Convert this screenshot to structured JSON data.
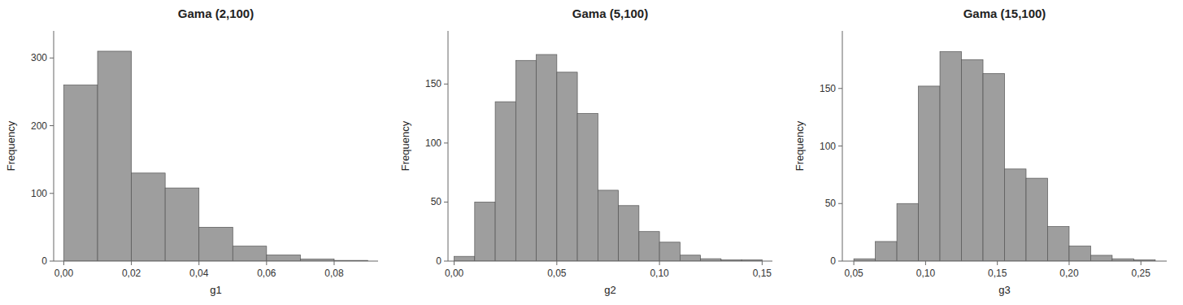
{
  "chart_data": [
    {
      "type": "histogram",
      "title": "Gama (2,100)",
      "xlabel": "g1",
      "ylabel": "Frequency",
      "bins": [
        0.0,
        0.01,
        0.02,
        0.03,
        0.04,
        0.05,
        0.06,
        0.07,
        0.08,
        0.09
      ],
      "values": [
        260,
        310,
        130,
        108,
        50,
        22,
        9,
        3,
        1
      ],
      "color": "#9e9e9e",
      "xlim": [
        -0.003,
        0.093
      ],
      "ylim": [
        0,
        340
      ],
      "xticks": [
        {
          "value": 0.0,
          "label": "0,00"
        },
        {
          "value": 0.02,
          "label": "0,02"
        },
        {
          "value": 0.04,
          "label": "0,04"
        },
        {
          "value": 0.06,
          "label": "0,06"
        },
        {
          "value": 0.08,
          "label": "0,08"
        }
      ],
      "yticks": [
        0,
        100,
        200,
        300
      ]
    },
    {
      "type": "histogram",
      "title": "Gama (5,100)",
      "xlabel": "g2",
      "ylabel": "Frequency",
      "bins": [
        0.0,
        0.01,
        0.02,
        0.03,
        0.04,
        0.05,
        0.06,
        0.07,
        0.08,
        0.09,
        0.1,
        0.11,
        0.12,
        0.13,
        0.14,
        0.15
      ],
      "values": [
        4,
        50,
        135,
        170,
        175,
        160,
        125,
        60,
        47,
        25,
        16,
        5,
        2,
        1,
        1
      ],
      "color": "#9e9e9e",
      "xlim": [
        -0.003,
        0.155
      ],
      "ylim": [
        0,
        195
      ],
      "xticks": [
        {
          "value": 0.0,
          "label": "0,00"
        },
        {
          "value": 0.05,
          "label": "0,05"
        },
        {
          "value": 0.1,
          "label": "0,10"
        },
        {
          "value": 0.15,
          "label": "0,15"
        }
      ],
      "yticks": [
        0,
        50,
        100,
        150
      ]
    },
    {
      "type": "histogram",
      "title": "Gama (15,100)",
      "xlabel": "g3",
      "ylabel": "Frequency",
      "bins": [
        0.05,
        0.065,
        0.08,
        0.095,
        0.11,
        0.125,
        0.14,
        0.155,
        0.17,
        0.185,
        0.2,
        0.215,
        0.23,
        0.245,
        0.26
      ],
      "values": [
        2,
        17,
        50,
        152,
        182,
        175,
        163,
        80,
        72,
        30,
        13,
        5,
        2,
        1
      ],
      "color": "#9e9e9e",
      "xlim": [
        0.042,
        0.268
      ],
      "ylim": [
        0,
        200
      ],
      "xticks": [
        {
          "value": 0.05,
          "label": "0,05"
        },
        {
          "value": 0.1,
          "label": "0,10"
        },
        {
          "value": 0.15,
          "label": "0,15"
        },
        {
          "value": 0.2,
          "label": "0,20"
        },
        {
          "value": 0.25,
          "label": "0,25"
        }
      ],
      "yticks": [
        0,
        50,
        100,
        150
      ]
    }
  ]
}
